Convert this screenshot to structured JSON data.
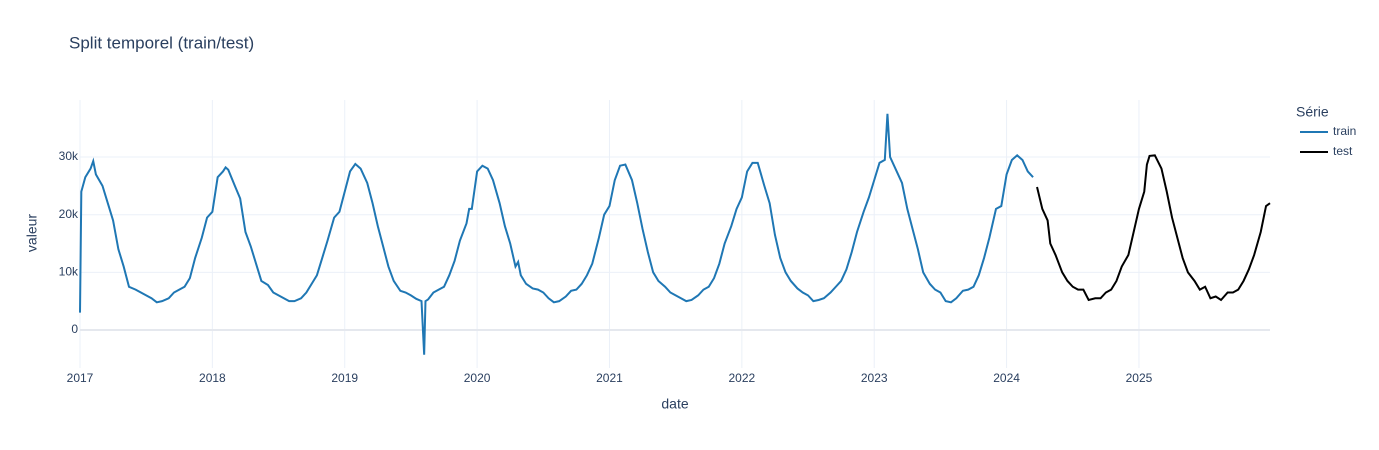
{
  "chart_data": {
    "type": "line",
    "title": "Split temporel (train/test)",
    "x_label": "date",
    "y_label": "valeur",
    "legend_title": "Série",
    "xlim": [
      2017,
      2025.99
    ],
    "xticks": [
      2017,
      2018,
      2019,
      2020,
      2021,
      2022,
      2023,
      2024,
      2025
    ],
    "ylim": [
      -6600,
      39900
    ],
    "yticks": [
      0,
      {
        "value": 10000,
        "label": "10k"
      },
      {
        "value": 20000,
        "label": "20k"
      },
      {
        "value": 30000,
        "label": "30k"
      }
    ],
    "grid": true,
    "series": [
      {
        "name": "train",
        "color": "#1f77b4",
        "x": [
          2017.0,
          2017.01,
          2017.04,
          2017.08,
          2017.1,
          2017.12,
          2017.17,
          2017.21,
          2017.25,
          2017.29,
          2017.33,
          2017.37,
          2017.42,
          2017.46,
          2017.5,
          2017.54,
          2017.58,
          2017.62,
          2017.67,
          2017.71,
          2017.75,
          2017.79,
          2017.83,
          2017.87,
          2017.92,
          2017.96,
          2018.0,
          2018.04,
          2018.08,
          2018.1,
          2018.12,
          2018.17,
          2018.21,
          2018.25,
          2018.29,
          2018.33,
          2018.37,
          2018.42,
          2018.46,
          2018.5,
          2018.54,
          2018.58,
          2018.62,
          2018.67,
          2018.71,
          2018.75,
          2018.79,
          2018.83,
          2018.87,
          2018.92,
          2018.96,
          2019.0,
          2019.04,
          2019.08,
          2019.12,
          2019.17,
          2019.21,
          2019.25,
          2019.29,
          2019.33,
          2019.37,
          2019.42,
          2019.46,
          2019.5,
          2019.54,
          2019.58,
          2019.6,
          2019.61,
          2019.63,
          2019.67,
          2019.71,
          2019.75,
          2019.79,
          2019.83,
          2019.87,
          2019.92,
          2019.94,
          2019.96,
          2020.0,
          2020.04,
          2020.08,
          2020.12,
          2020.17,
          2020.21,
          2020.25,
          2020.29,
          2020.31,
          2020.33,
          2020.37,
          2020.42,
          2020.46,
          2020.5,
          2020.54,
          2020.58,
          2020.62,
          2020.67,
          2020.71,
          2020.75,
          2020.79,
          2020.83,
          2020.87,
          2020.92,
          2020.96,
          2021.0,
          2021.04,
          2021.08,
          2021.12,
          2021.17,
          2021.21,
          2021.25,
          2021.29,
          2021.33,
          2021.37,
          2021.42,
          2021.46,
          2021.5,
          2021.54,
          2021.58,
          2021.62,
          2021.67,
          2021.71,
          2021.75,
          2021.79,
          2021.83,
          2021.87,
          2021.92,
          2021.96,
          2022.0,
          2022.04,
          2022.08,
          2022.12,
          2022.17,
          2022.21,
          2022.25,
          2022.29,
          2022.33,
          2022.37,
          2022.42,
          2022.46,
          2022.5,
          2022.54,
          2022.58,
          2022.62,
          2022.67,
          2022.71,
          2022.75,
          2022.79,
          2022.83,
          2022.87,
          2022.92,
          2022.96,
          2023.0,
          2023.04,
          2023.08,
          2023.1,
          2023.12,
          2023.17,
          2023.21,
          2023.25,
          2023.29,
          2023.33,
          2023.37,
          2023.42,
          2023.46,
          2023.5,
          2023.54,
          2023.58,
          2023.62,
          2023.67,
          2023.71,
          2023.75,
          2023.79,
          2023.83,
          2023.87,
          2023.92,
          2023.96,
          2024.0,
          2024.04,
          2024.08,
          2024.12,
          2024.16,
          2024.2
        ],
        "values": [
          3000,
          24000,
          26500,
          28000,
          29300,
          27000,
          25000,
          22000,
          19000,
          14000,
          11000,
          7500,
          7000,
          6500,
          6000,
          5500,
          4800,
          5000,
          5500,
          6500,
          7000,
          7500,
          9000,
          12500,
          16000,
          19500,
          20500,
          26500,
          27500,
          28200,
          27800,
          25000,
          22800,
          17000,
          14500,
          11500,
          8500,
          7800,
          6500,
          6000,
          5500,
          5000,
          5000,
          5500,
          6500,
          8000,
          9500,
          12500,
          15500,
          19500,
          20500,
          24000,
          27500,
          28800,
          28000,
          25500,
          22000,
          18000,
          14500,
          11000,
          8500,
          6800,
          6500,
          6000,
          5400,
          5000,
          -4300,
          5000,
          5300,
          6500,
          7000,
          7500,
          9500,
          12000,
          15500,
          18500,
          21000,
          21000,
          27500,
          28500,
          28000,
          26000,
          22000,
          18000,
          15000,
          11000,
          11800,
          9500,
          8000,
          7200,
          7000,
          6500,
          5500,
          4800,
          5000,
          5800,
          6800,
          7000,
          8000,
          9500,
          11500,
          16000,
          20000,
          21500,
          26000,
          28500,
          28700,
          26000,
          22000,
          17500,
          13500,
          10000,
          8500,
          7500,
          6500,
          6000,
          5500,
          5000,
          5200,
          6000,
          7000,
          7500,
          9000,
          11500,
          15000,
          18000,
          21000,
          23000,
          27500,
          29000,
          29000,
          25000,
          22000,
          16500,
          12500,
          10000,
          8500,
          7200,
          6500,
          6000,
          5000,
          5200,
          5500,
          6500,
          7500,
          8500,
          10500,
          13500,
          17000,
          20500,
          23000,
          26000,
          29000,
          29500,
          37500,
          30000,
          27500,
          25500,
          21000,
          17500,
          14000,
          10000,
          8000,
          7000,
          6500,
          5000,
          4800,
          5500,
          6800,
          7000,
          7500,
          9500,
          12500,
          16000,
          21000,
          21500,
          27000,
          29500,
          30300,
          29500,
          27500,
          26500
        ]
      },
      {
        "name": "test",
        "color": "#000000",
        "x": [
          2024.23,
          2024.27,
          2024.31,
          2024.33,
          2024.37,
          2024.42,
          2024.46,
          2024.5,
          2024.54,
          2024.58,
          2024.62,
          2024.67,
          2024.71,
          2024.75,
          2024.79,
          2024.83,
          2024.87,
          2024.92,
          2024.96,
          2025.0,
          2025.04,
          2025.06,
          2025.08,
          2025.12,
          2025.17,
          2025.21,
          2025.25,
          2025.29,
          2025.33,
          2025.37,
          2025.42,
          2025.46,
          2025.5,
          2025.54,
          2025.58,
          2025.62,
          2025.67,
          2025.71,
          2025.75,
          2025.79,
          2025.83,
          2025.87,
          2025.92,
          2025.96,
          2025.99
        ],
        "values": [
          24800,
          21000,
          19000,
          15000,
          13000,
          10000,
          8500,
          7500,
          7000,
          7000,
          5200,
          5500,
          5500,
          6500,
          7000,
          8500,
          11000,
          13000,
          17000,
          21000,
          24000,
          28700,
          30200,
          30300,
          28000,
          24000,
          19500,
          16000,
          12500,
          10000,
          8500,
          7000,
          7500,
          5500,
          5800,
          5200,
          6500,
          6500,
          7000,
          8500,
          10500,
          13000,
          17000,
          21500,
          22000
        ]
      }
    ]
  }
}
